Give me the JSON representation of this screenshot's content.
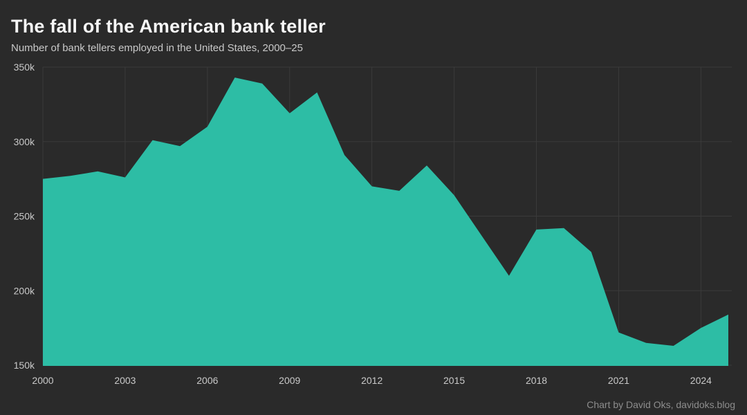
{
  "header": {
    "title": "The fall of the American bank teller",
    "subtitle": "Number of bank tellers employed in the United States, 2000–25"
  },
  "footer": {
    "attribution": "Chart by David Oks, davidoks.blog"
  },
  "colors": {
    "background": "#2a2a2a",
    "area_fill": "#2dbda5",
    "gridline": "#3b3b3b",
    "title_text": "#f7f7f7",
    "subtitle_text": "#c9c9c9",
    "tick_text": "#c9c9c9",
    "attribution_text": "#8d8d8d"
  },
  "chart_data": {
    "type": "area",
    "title": "The fall of the American bank teller",
    "subtitle": "Number of bank tellers employed in the United States, 2000–25",
    "unit": "bank tellers employed (thousands)",
    "x": [
      2000,
      2001,
      2002,
      2003,
      2004,
      2005,
      2006,
      2007,
      2008,
      2009,
      2010,
      2011,
      2012,
      2013,
      2014,
      2015,
      2016,
      2017,
      2018,
      2019,
      2020,
      2021,
      2022,
      2023,
      2024,
      2025
    ],
    "values_thousands": [
      275,
      277,
      280,
      276,
      301,
      297,
      310,
      343,
      339,
      319,
      333,
      291,
      270,
      267,
      284,
      264,
      237,
      210,
      241,
      242,
      226,
      172,
      165,
      163,
      175,
      184
    ],
    "xlim": [
      2000,
      2025
    ],
    "ylim_thousands": [
      150,
      350
    ],
    "baseline_thousands": 150,
    "grid": true,
    "legend": "none",
    "y_ticks": [
      {
        "value": 150,
        "label": "150k"
      },
      {
        "value": 200,
        "label": "200k"
      },
      {
        "value": 250,
        "label": "250k"
      },
      {
        "value": 300,
        "label": "300k"
      },
      {
        "value": 350,
        "label": "350k"
      }
    ],
    "x_ticks": [
      {
        "value": 2000,
        "label": "2000"
      },
      {
        "value": 2003,
        "label": "2003"
      },
      {
        "value": 2006,
        "label": "2006"
      },
      {
        "value": 2009,
        "label": "2009"
      },
      {
        "value": 2012,
        "label": "2012"
      },
      {
        "value": 2015,
        "label": "2015"
      },
      {
        "value": 2018,
        "label": "2018"
      },
      {
        "value": 2021,
        "label": "2021"
      },
      {
        "value": 2024,
        "label": "2024"
      }
    ]
  }
}
